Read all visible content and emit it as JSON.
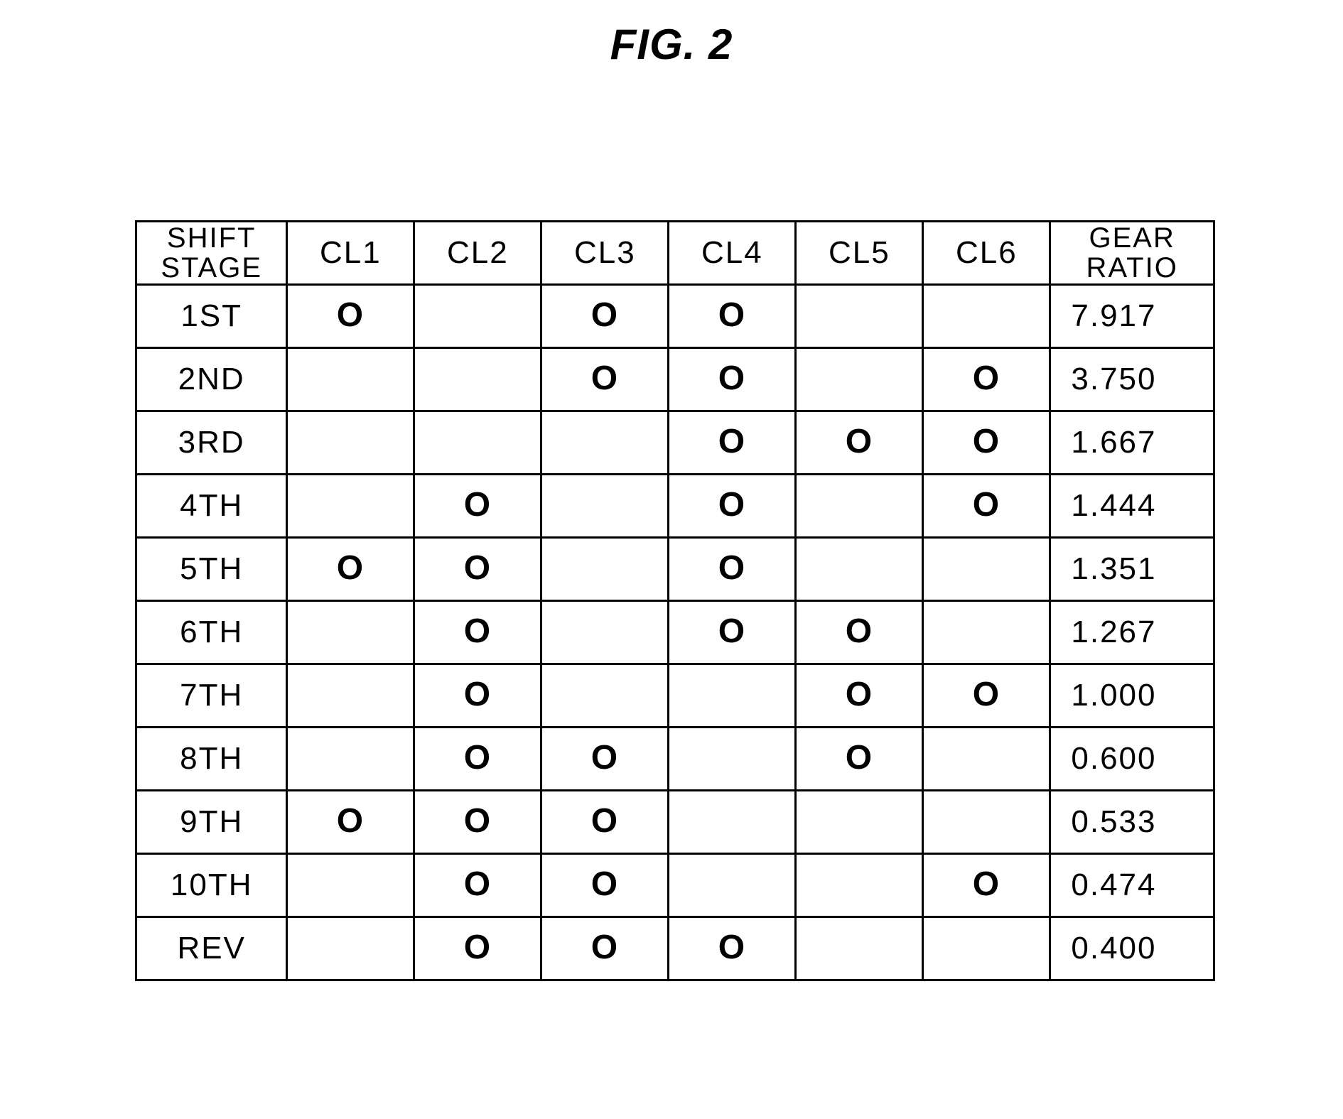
{
  "figure": {
    "title": "FIG. 2"
  },
  "table": {
    "type": "table",
    "border_color": "#000000",
    "background_color": "#ffffff",
    "text_color": "#000000",
    "font_family": "Arial",
    "header_fontsize_pt": 30,
    "cell_fontsize_pt": 33,
    "mark_glyph": "O",
    "headers": {
      "stage_line1": "SHIFT",
      "stage_line2": "STAGE",
      "cl1": "CL1",
      "cl2": "CL2",
      "cl3": "CL3",
      "cl4": "CL4",
      "cl5": "CL5",
      "cl6": "CL6",
      "ratio_line1": "GEAR",
      "ratio_line2": "RATIO"
    },
    "columns": [
      "SHIFT STAGE",
      "CL1",
      "CL2",
      "CL3",
      "CL4",
      "CL5",
      "CL6",
      "GEAR RATIO"
    ],
    "column_widths_pct": [
      14,
      11.8,
      11.8,
      11.8,
      11.8,
      11.8,
      11.8,
      15.2
    ],
    "rows": [
      {
        "stage": "1ST",
        "cl": [
          true,
          false,
          true,
          true,
          false,
          false
        ],
        "ratio": "7.917"
      },
      {
        "stage": "2ND",
        "cl": [
          false,
          false,
          true,
          true,
          false,
          true
        ],
        "ratio": "3.750"
      },
      {
        "stage": "3RD",
        "cl": [
          false,
          false,
          false,
          true,
          true,
          true
        ],
        "ratio": "1.667"
      },
      {
        "stage": "4TH",
        "cl": [
          false,
          true,
          false,
          true,
          false,
          true
        ],
        "ratio": "1.444"
      },
      {
        "stage": "5TH",
        "cl": [
          true,
          true,
          false,
          true,
          false,
          false
        ],
        "ratio": "1.351"
      },
      {
        "stage": "6TH",
        "cl": [
          false,
          true,
          false,
          true,
          true,
          false
        ],
        "ratio": "1.267"
      },
      {
        "stage": "7TH",
        "cl": [
          false,
          true,
          false,
          false,
          true,
          true
        ],
        "ratio": "1.000"
      },
      {
        "stage": "8TH",
        "cl": [
          false,
          true,
          true,
          false,
          true,
          false
        ],
        "ratio": "0.600"
      },
      {
        "stage": "9TH",
        "cl": [
          true,
          true,
          true,
          false,
          false,
          false
        ],
        "ratio": "0.533"
      },
      {
        "stage": "10TH",
        "cl": [
          false,
          true,
          true,
          false,
          false,
          true
        ],
        "ratio": "0.474"
      },
      {
        "stage": "REV",
        "cl": [
          false,
          true,
          true,
          true,
          false,
          false
        ],
        "ratio": "0.400"
      }
    ]
  }
}
